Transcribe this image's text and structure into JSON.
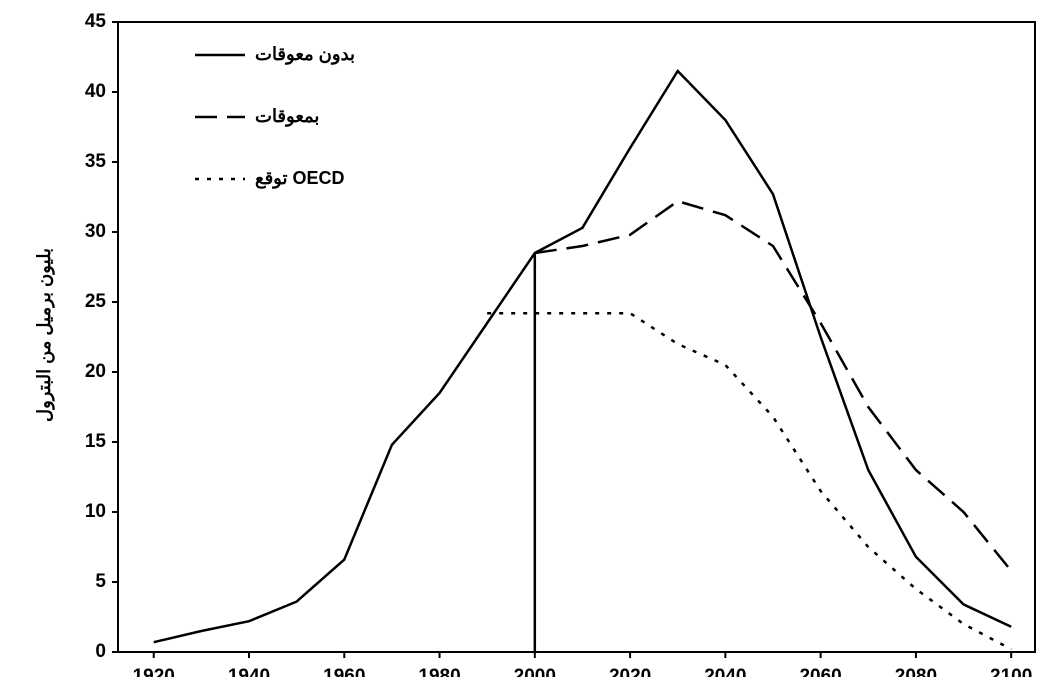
{
  "chart_data": {
    "type": "line",
    "y_label": "بليون برميل من البترول",
    "x": [
      1920,
      1930,
      1940,
      1950,
      1960,
      1970,
      1980,
      1990,
      2000,
      2010,
      2020,
      2030,
      2040,
      2050,
      2060,
      2070,
      2080,
      2090,
      2100
    ],
    "series": [
      {
        "name": "بدون معوقات",
        "color": "#000000",
        "style": "solid",
        "values": [
          0.7,
          1.5,
          2.2,
          3.6,
          6.6,
          14.8,
          18.5,
          23.5,
          28.5,
          30.3,
          36,
          41.5,
          38,
          32.7,
          22.5,
          13,
          6.8,
          3.4,
          1.8
        ]
      },
      {
        "name": "بمعوقات",
        "color": "#000000",
        "style": "dashed",
        "values": [
          null,
          null,
          null,
          null,
          null,
          null,
          null,
          null,
          28.5,
          29,
          29.8,
          32.2,
          31.2,
          29,
          23.5,
          17.5,
          13,
          10,
          5.8
        ]
      },
      {
        "name": "توقع OECD",
        "color": "#000000",
        "style": "dotted",
        "values": [
          null,
          null,
          null,
          null,
          null,
          null,
          null,
          24.2,
          24.2,
          24.2,
          24.2,
          22,
          20.5,
          16.8,
          11.5,
          7.5,
          4.5,
          2,
          0.2
        ]
      }
    ],
    "vline": {
      "x": 2000,
      "y": 28.5
    },
    "xlim": [
      1912.5,
      2105
    ],
    "xticks": [
      1920,
      1940,
      1960,
      1980,
      2000,
      2020,
      2040,
      2060,
      2080,
      2100
    ],
    "ylim": [
      0,
      45
    ],
    "yticks": [
      0,
      5,
      10,
      15,
      20,
      25,
      30,
      35,
      40,
      45
    ],
    "legend": "top-left",
    "grid": false
  }
}
